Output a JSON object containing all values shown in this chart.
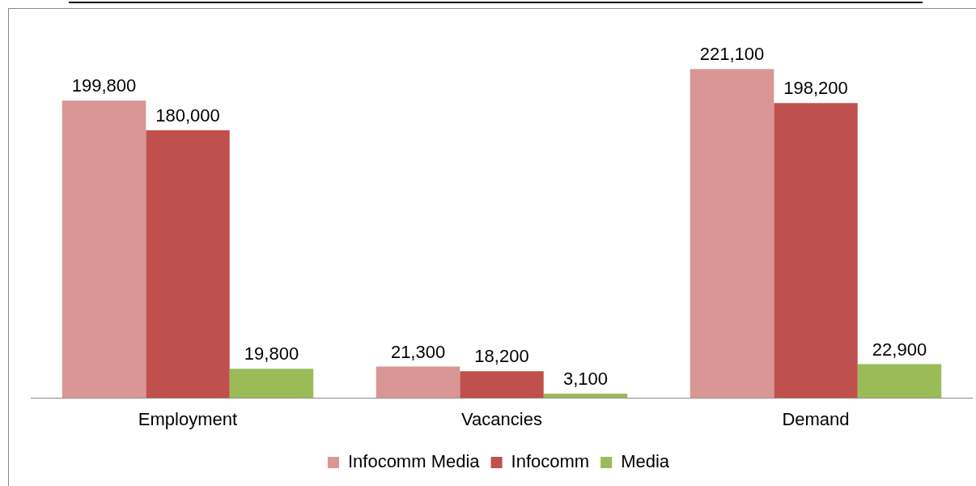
{
  "chart_data": {
    "type": "bar",
    "categories": [
      "Employment",
      "Vacancies",
      "Demand"
    ],
    "series": [
      {
        "name": "Infocomm Media",
        "color": "#d99694",
        "values": [
          199800,
          21300,
          221100
        ],
        "value_labels": [
          "199,800",
          "21,300",
          "221,100"
        ]
      },
      {
        "name": "Infocomm",
        "color": "#c0504d",
        "values": [
          180000,
          18200,
          198200
        ],
        "value_labels": [
          "180,000",
          "18,200",
          "198,200"
        ]
      },
      {
        "name": "Media",
        "color": "#9bbb59",
        "values": [
          19800,
          3100,
          22900
        ],
        "value_labels": [
          "19,800",
          "3,100",
          "22,900"
        ]
      }
    ],
    "legend": "bottom",
    "grid": false
  }
}
